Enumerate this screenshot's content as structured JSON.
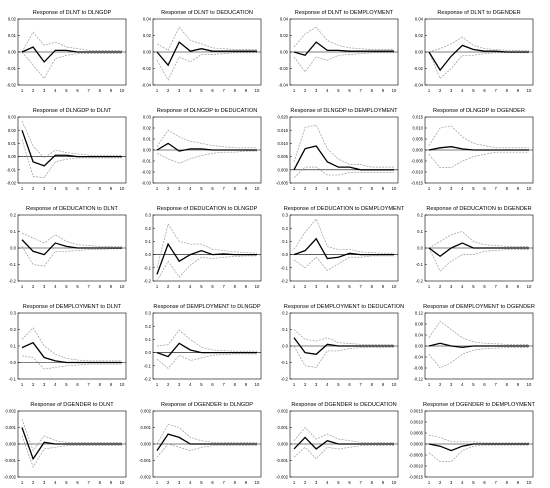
{
  "chart_data": {
    "type": "line",
    "x": [
      1,
      2,
      3,
      4,
      5,
      6,
      7,
      8,
      9,
      10
    ],
    "panels": [
      {
        "title": "Response of DLNT to DLNGDP",
        "yticks": [
          "0.02",
          "0.01",
          "0.00",
          "-0.01",
          "-0.02"
        ],
        "ylim": [
          -0.02,
          0.02
        ],
        "response": [
          0,
          0.003,
          -0.006,
          0.001,
          0.001,
          0,
          0,
          0,
          0,
          0
        ],
        "upper": [
          0,
          0.012,
          0.004,
          0.006,
          0.003,
          0.002,
          0.001,
          0.001,
          0.001,
          0.001
        ],
        "lower": [
          0,
          -0.008,
          -0.016,
          -0.004,
          -0.002,
          -0.001,
          -0.001,
          -0.001,
          -0.001,
          -0.001
        ]
      },
      {
        "title": "Response of DLNT to DEDUCATION",
        "yticks": [
          "0.04",
          "0.02",
          "0.00",
          "-0.02",
          "-0.04"
        ],
        "ylim": [
          -0.04,
          0.04
        ],
        "response": [
          0,
          -0.016,
          0.012,
          0.001,
          0.004,
          0.001,
          0.001,
          0.001,
          0.001,
          0.001
        ],
        "upper": [
          0.01,
          0.002,
          0.03,
          0.014,
          0.01,
          0.005,
          0.004,
          0.003,
          0.003,
          0.003
        ],
        "lower": [
          -0.01,
          -0.034,
          -0.006,
          -0.012,
          -0.003,
          -0.003,
          -0.002,
          -0.001,
          -0.001,
          -0.001
        ]
      },
      {
        "title": "Response of DLNT to DEMPLOYMENT",
        "yticks": [
          "0.04",
          "0.02",
          "0.00",
          "-0.02",
          "-0.04"
        ],
        "ylim": [
          -0.04,
          0.04
        ],
        "response": [
          0,
          -0.004,
          0.012,
          0.002,
          0.002,
          0.001,
          0.001,
          0.001,
          0.001,
          0.001
        ],
        "upper": [
          0.006,
          0.022,
          0.03,
          0.014,
          0.008,
          0.005,
          0.004,
          0.003,
          0.003,
          0.003
        ],
        "lower": [
          -0.006,
          -0.024,
          -0.006,
          -0.01,
          -0.004,
          -0.003,
          -0.002,
          -0.001,
          -0.001,
          -0.001
        ]
      },
      {
        "title": "Response of DLNT to DGENDER",
        "yticks": [
          "0.04",
          "0.02",
          "0.00",
          "-0.02",
          "-0.04"
        ],
        "ylim": [
          -0.04,
          0.04
        ],
        "response": [
          0,
          -0.022,
          -0.005,
          0.008,
          0.003,
          0.001,
          0.001,
          0,
          0,
          0
        ],
        "upper": [
          0,
          0.004,
          0.01,
          0.018,
          0.008,
          0.004,
          0.003,
          0.002,
          0.002,
          0.002
        ],
        "lower": [
          0,
          -0.032,
          -0.02,
          -0.004,
          -0.004,
          -0.002,
          -0.001,
          -0.001,
          -0.001,
          -0.001
        ]
      },
      {
        "title": "Response of DLNGDP to DLNT",
        "yticks": [
          "0.03",
          "0.02",
          "0.01",
          "0.00",
          "-0.01",
          "-0.02"
        ],
        "ylim": [
          -0.02,
          0.03
        ],
        "response": [
          0.02,
          -0.004,
          -0.007,
          0.001,
          0.001,
          0,
          0,
          0,
          0,
          0
        ],
        "upper": [
          0.027,
          0.008,
          -0.001,
          0.005,
          0.003,
          0.002,
          0.001,
          0.001,
          0.001,
          0.001
        ],
        "lower": [
          0.013,
          -0.015,
          -0.016,
          -0.004,
          -0.002,
          -0.001,
          -0.001,
          -0.001,
          -0.001,
          -0.001
        ]
      },
      {
        "title": "Response of DLNGDP to DEDUCATION",
        "yticks": [
          "0.03",
          "0.02",
          "0.01",
          "0.00",
          "-0.01",
          "-0.02",
          "-0.03"
        ],
        "ylim": [
          -0.03,
          0.03
        ],
        "response": [
          0,
          0.006,
          -0.001,
          0.001,
          0.001,
          0,
          0,
          0,
          0,
          0
        ],
        "upper": [
          0.003,
          0.018,
          0.012,
          0.008,
          0.006,
          0.004,
          0.003,
          0.002,
          0.002,
          0.002
        ],
        "lower": [
          -0.003,
          -0.008,
          -0.012,
          -0.008,
          -0.005,
          -0.003,
          -0.002,
          -0.002,
          -0.001,
          -0.001
        ]
      },
      {
        "title": "Response of DLNGDP to DEMPLOYMENT",
        "yticks": [
          "0.020",
          "0.015",
          "0.010",
          "0.005",
          "0.000",
          "-0.005"
        ],
        "ylim": [
          -0.005,
          0.02
        ],
        "response": [
          0,
          0.008,
          0.009,
          0.003,
          0.001,
          0.001,
          0,
          0,
          0,
          0
        ],
        "upper": [
          0.003,
          0.016,
          0.017,
          0.008,
          0.004,
          0.002,
          0.002,
          0.001,
          0.001,
          0.001
        ],
        "lower": [
          -0.003,
          0.001,
          0.001,
          -0.002,
          -0.002,
          -0.001,
          -0.001,
          -0.001,
          -0.001,
          -0.001
        ]
      },
      {
        "title": "Response of DLNGDP to DGENDER",
        "yticks": [
          "0.015",
          "0.010",
          "0.005",
          "0.000",
          "-0.005",
          "-0.010",
          "-0.015"
        ],
        "ylim": [
          -0.015,
          0.015
        ],
        "response": [
          0,
          0.001,
          0.0015,
          0.0005,
          0,
          0,
          0,
          0,
          0,
          0
        ],
        "upper": [
          0.002,
          0.01,
          0.011,
          0.006,
          0.003,
          0.002,
          0.001,
          0.001,
          0.001,
          0.001
        ],
        "lower": [
          -0.002,
          -0.008,
          -0.008,
          -0.005,
          -0.003,
          -0.002,
          -0.001,
          -0.001,
          -0.001,
          -0.001
        ]
      },
      {
        "title": "Response of DEDUCATION to DLNT",
        "yticks": [
          "0.2",
          "0.1",
          "0.0",
          "-0.1",
          "-0.2"
        ],
        "ylim": [
          -0.2,
          0.2
        ],
        "response": [
          0.05,
          -0.02,
          -0.04,
          0.03,
          0.01,
          0,
          0,
          0,
          0,
          0
        ],
        "upper": [
          0.09,
          0.06,
          0.03,
          0.08,
          0.04,
          0.02,
          0.015,
          0.01,
          0.01,
          0.01
        ],
        "lower": [
          0.01,
          -0.1,
          -0.11,
          -0.02,
          -0.02,
          -0.015,
          -0.01,
          -0.01,
          -0.005,
          -0.005
        ]
      },
      {
        "title": "Response of DEDUCATION to DLNGDP",
        "yticks": [
          "0.3",
          "0.2",
          "0.1",
          "0.0",
          "-0.1",
          "-0.2"
        ],
        "ylim": [
          -0.2,
          0.3
        ],
        "response": [
          -0.15,
          0.08,
          -0.05,
          0,
          0.03,
          0,
          0.005,
          0,
          0,
          0
        ],
        "upper": [
          -0.1,
          0.23,
          0.1,
          0.08,
          0.08,
          0.04,
          0.03,
          0.02,
          0.015,
          0.01
        ],
        "lower": [
          -0.2,
          -0.05,
          -0.17,
          -0.08,
          -0.02,
          -0.03,
          -0.02,
          -0.015,
          -0.01,
          -0.01
        ]
      },
      {
        "title": "Response of DEDUCATION to DEMPLOYMENT",
        "yticks": [
          "0.3",
          "0.2",
          "0.1",
          "0.0",
          "-0.1",
          "-0.2"
        ],
        "ylim": [
          -0.2,
          0.3
        ],
        "response": [
          0,
          0.03,
          0.12,
          -0.03,
          -0.02,
          0.01,
          0,
          0,
          0,
          0
        ],
        "upper": [
          0.04,
          0.17,
          0.27,
          0.06,
          0.04,
          0.04,
          0.02,
          0.015,
          0.01,
          0.01
        ],
        "lower": [
          -0.04,
          -0.1,
          -0.02,
          -0.12,
          -0.07,
          -0.02,
          -0.02,
          -0.01,
          -0.01,
          -0.01
        ]
      },
      {
        "title": "Response of DEDUCATION to DGENDER",
        "yticks": [
          "0.2",
          "0.1",
          "0.0",
          "-0.1",
          "-0.2"
        ],
        "ylim": [
          -0.2,
          0.2
        ],
        "response": [
          0,
          -0.05,
          0,
          0.03,
          0,
          0,
          0,
          0,
          0,
          0
        ],
        "upper": [
          0,
          0.04,
          0.08,
          0.1,
          0.04,
          0.02,
          0.015,
          0.01,
          0.01,
          0.01
        ],
        "lower": [
          0,
          -0.14,
          -0.08,
          -0.04,
          -0.04,
          -0.02,
          -0.015,
          -0.01,
          -0.01,
          -0.01
        ]
      },
      {
        "title": "Response of DEMPLOYMENT to DLNT",
        "yticks": [
          "0.3",
          "0.2",
          "0.1",
          "0.0",
          "-0.1"
        ],
        "ylim": [
          -0.1,
          0.3
        ],
        "response": [
          0.09,
          0.12,
          0.03,
          0.01,
          0,
          0,
          0,
          0,
          0,
          0
        ],
        "upper": [
          0.14,
          0.21,
          0.1,
          0.05,
          0.025,
          0.015,
          0.01,
          0.01,
          0.01,
          0.01
        ],
        "lower": [
          0.04,
          0.03,
          -0.04,
          -0.03,
          -0.02,
          -0.015,
          -0.01,
          -0.01,
          -0.01,
          -0.01
        ]
      },
      {
        "title": "Response of DEMPLOYMENT to DLNGDP",
        "yticks": [
          "0.3",
          "0.2",
          "0.1",
          "0.0",
          "-0.1",
          "-0.2"
        ],
        "ylim": [
          -0.2,
          0.3
        ],
        "response": [
          0,
          -0.03,
          0.07,
          0.02,
          0,
          0,
          0,
          0,
          0,
          0
        ],
        "upper": [
          0.05,
          0.06,
          0.17,
          0.1,
          0.04,
          0.02,
          0.015,
          0.01,
          0.01,
          0.01
        ],
        "lower": [
          -0.05,
          -0.12,
          -0.02,
          -0.06,
          -0.04,
          -0.02,
          -0.015,
          -0.01,
          -0.01,
          -0.01
        ]
      },
      {
        "title": "Response of DEMPLOYMENT to DEDUCATION",
        "yticks": [
          "0.2",
          "0.1",
          "0.0",
          "-0.1",
          "-0.2"
        ],
        "ylim": [
          -0.2,
          0.2
        ],
        "response": [
          0.05,
          -0.04,
          -0.05,
          0.01,
          0,
          0,
          0,
          0,
          0,
          0
        ],
        "upper": [
          0.1,
          0.04,
          0.03,
          0.05,
          0.02,
          0.015,
          0.01,
          0.01,
          0.01,
          0.01
        ],
        "lower": [
          0,
          -0.12,
          -0.13,
          -0.03,
          -0.03,
          -0.015,
          -0.01,
          -0.01,
          -0.01,
          -0.01
        ]
      },
      {
        "title": "Response of DEMPLOYMENT to DGENDER",
        "yticks": [
          "0.12",
          "0.08",
          "0.04",
          "0.00",
          "-0.04",
          "-0.08",
          "-0.12"
        ],
        "ylim": [
          -0.12,
          0.12
        ],
        "response": [
          0,
          0.01,
          0,
          -0.005,
          0,
          0,
          0,
          0,
          0,
          0
        ],
        "upper": [
          0.03,
          0.09,
          0.06,
          0.03,
          0.015,
          0.01,
          0.008,
          0.006,
          0.005,
          0.005
        ],
        "lower": [
          -0.03,
          -0.08,
          -0.06,
          -0.03,
          -0.015,
          -0.01,
          -0.008,
          -0.006,
          -0.005,
          -0.005
        ]
      },
      {
        "title": "Response of DGENDER to DLNT",
        "yticks": [
          "0.002",
          "0.001",
          "0.000",
          "-0.001",
          "-0.002"
        ],
        "ylim": [
          -0.002,
          0.002
        ],
        "response": [
          0.001,
          -0.0009,
          0.0001,
          0,
          0,
          0,
          0,
          0,
          0,
          0
        ],
        "upper": [
          0.0015,
          -0.0004,
          0.0005,
          0.0002,
          0.0001,
          0.0001,
          0.0001,
          0.0001,
          0.0001,
          0.0001
        ],
        "lower": [
          0.0005,
          -0.0014,
          -0.0003,
          -0.0002,
          -0.0001,
          -0.0001,
          -0.0001,
          -0.0001,
          -0.0001,
          -0.0001
        ]
      },
      {
        "title": "Response of DGENDER to DLNGDP",
        "yticks": [
          "0.002",
          "0.001",
          "0.000",
          "-0.001",
          "-0.002"
        ],
        "ylim": [
          -0.002,
          0.002
        ],
        "response": [
          -0.0004,
          0.0006,
          0.0004,
          0,
          0,
          0,
          0,
          0,
          0,
          0
        ],
        "upper": [
          0,
          0.0012,
          0.001,
          0.0004,
          0.0002,
          0.0001,
          0.0001,
          0.0001,
          0.0001,
          0.0001
        ],
        "lower": [
          -0.0008,
          0,
          -0.0002,
          -0.0004,
          -0.0002,
          -0.0001,
          -0.0001,
          -0.0001,
          -0.0001,
          -0.0001
        ]
      },
      {
        "title": "Response of DGENDER to DEDUCATION",
        "yticks": [
          "0.002",
          "0.001",
          "0.000",
          "-0.001",
          "-0.002"
        ],
        "ylim": [
          -0.002,
          0.002
        ],
        "response": [
          -0.0003,
          0.0004,
          -0.0003,
          0.0002,
          0,
          0,
          0,
          0,
          0,
          0
        ],
        "upper": [
          0.0002,
          0.001,
          0.0003,
          0.0006,
          0.0003,
          0.0002,
          0.0001,
          0.0001,
          0.0001,
          0.0001
        ],
        "lower": [
          -0.0008,
          -0.0002,
          -0.0009,
          -0.0002,
          -0.0003,
          -0.0002,
          -0.0001,
          -0.0001,
          -0.0001,
          -0.0001
        ]
      },
      {
        "title": "Response of DGENDER to DEMPLOYMENT",
        "yticks": [
          "0.0015",
          "0.0010",
          "0.0005",
          "0.0000",
          "-0.0005",
          "-0.0010",
          "-0.0015"
        ],
        "ylim": [
          -0.0015,
          0.0015
        ],
        "response": [
          0,
          -0.0001,
          -0.0003,
          -0.0001,
          0,
          0,
          0,
          0,
          0,
          0
        ],
        "upper": [
          0.0004,
          0.0003,
          0.0001,
          0.0001,
          0.0001,
          5e-05,
          5e-05,
          5e-05,
          5e-05,
          5e-05
        ],
        "lower": [
          -0.0004,
          -0.0008,
          -0.0008,
          -0.0003,
          -0.0001,
          -5e-05,
          -5e-05,
          -5e-05,
          -5e-05,
          -5e-05
        ]
      }
    ]
  }
}
